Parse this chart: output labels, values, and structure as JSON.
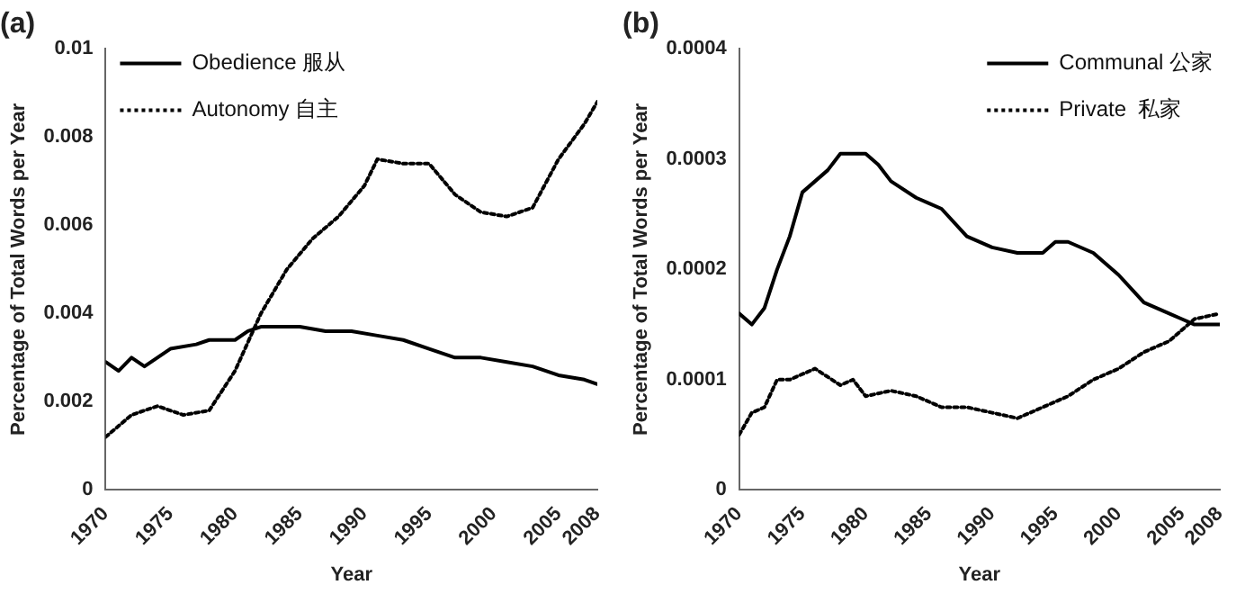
{
  "chart_data": [
    {
      "type": "line",
      "title": "(a)",
      "xlabel": "Year",
      "ylabel": "Percentage of Total Words per Year",
      "xlim": [
        1970,
        2008
      ],
      "xticks": [
        1970,
        1975,
        1980,
        1985,
        1990,
        1995,
        2000,
        2005,
        2008
      ],
      "ylim": [
        0,
        0.01
      ],
      "yticks": [
        0,
        0.002,
        0.004,
        0.006,
        0.008,
        0.01
      ],
      "grid": false,
      "legend": "top left",
      "marker": "none",
      "series": [
        {
          "name": "Obedience 服从",
          "color": "#000000",
          "line_style": "solid",
          "x": [
            1970,
            1971,
            1972,
            1973,
            1974,
            1975,
            1977,
            1978,
            1980,
            1981,
            1982,
            1985,
            1987,
            1989,
            1991,
            1993,
            1995,
            1997,
            1999,
            2001,
            2003,
            2005,
            2007,
            2008
          ],
          "values": [
            0.0029,
            0.0027,
            0.003,
            0.0028,
            0.003,
            0.0032,
            0.0033,
            0.0034,
            0.0034,
            0.0036,
            0.0037,
            0.0037,
            0.0036,
            0.0036,
            0.0035,
            0.0034,
            0.0032,
            0.003,
            0.003,
            0.0029,
            0.0028,
            0.0026,
            0.0025,
            0.0024
          ]
        },
        {
          "name": "Autonomy 自主",
          "color": "#000000",
          "line_style": "dotted",
          "x": [
            1970,
            1972,
            1974,
            1976,
            1978,
            1980,
            1982,
            1984,
            1986,
            1988,
            1990,
            1991,
            1993,
            1995,
            1997,
            1999,
            2001,
            2003,
            2005,
            2007,
            2008
          ],
          "values": [
            0.0012,
            0.0017,
            0.0019,
            0.0017,
            0.0018,
            0.0027,
            0.004,
            0.005,
            0.0057,
            0.0062,
            0.0069,
            0.0075,
            0.0074,
            0.0074,
            0.0067,
            0.0063,
            0.0062,
            0.0064,
            0.0075,
            0.0083,
            0.0088
          ]
        }
      ]
    },
    {
      "type": "line",
      "title": "(b)",
      "xlabel": "Year",
      "ylabel": "Percentage of Total Words per Year",
      "xlim": [
        1970,
        2008
      ],
      "xticks": [
        1970,
        1975,
        1980,
        1985,
        1990,
        1995,
        2000,
        2005,
        2008
      ],
      "ylim": [
        0,
        0.0004
      ],
      "yticks": [
        0,
        0.0001,
        0.0002,
        0.0003,
        0.0004
      ],
      "grid": false,
      "legend": "top right",
      "marker": "none",
      "series": [
        {
          "name": "Communal 公家",
          "color": "#000000",
          "line_style": "solid",
          "x": [
            1970,
            1971,
            1972,
            1973,
            1974,
            1975,
            1976,
            1977,
            1978,
            1980,
            1981,
            1982,
            1984,
            1985,
            1986,
            1988,
            1990,
            1992,
            1994,
            1995,
            1996,
            1998,
            2000,
            2002,
            2004,
            2005,
            2006,
            2008
          ],
          "values": [
            0.00016,
            0.00015,
            0.000165,
            0.0002,
            0.00023,
            0.00027,
            0.00028,
            0.00029,
            0.000305,
            0.000305,
            0.000295,
            0.00028,
            0.000265,
            0.00026,
            0.000255,
            0.00023,
            0.00022,
            0.000215,
            0.000215,
            0.000225,
            0.000225,
            0.000215,
            0.000195,
            0.00017,
            0.00016,
            0.000155,
            0.00015,
            0.00015
          ]
        },
        {
          "name": "Private  私家",
          "color": "#000000",
          "line_style": "dotted",
          "x": [
            1970,
            1971,
            1972,
            1973,
            1974,
            1976,
            1978,
            1979,
            1980,
            1982,
            1984,
            1986,
            1988,
            1990,
            1992,
            1994,
            1996,
            1998,
            2000,
            2002,
            2004,
            2006,
            2008
          ],
          "values": [
            5e-05,
            7e-05,
            7.5e-05,
            0.0001,
            0.0001,
            0.00011,
            9.5e-05,
            0.0001,
            8.5e-05,
            9e-05,
            8.5e-05,
            7.5e-05,
            7.5e-05,
            7e-05,
            6.5e-05,
            7.5e-05,
            8.5e-05,
            0.0001,
            0.00011,
            0.000125,
            0.000135,
            0.000155,
            0.00016
          ]
        }
      ]
    }
  ]
}
